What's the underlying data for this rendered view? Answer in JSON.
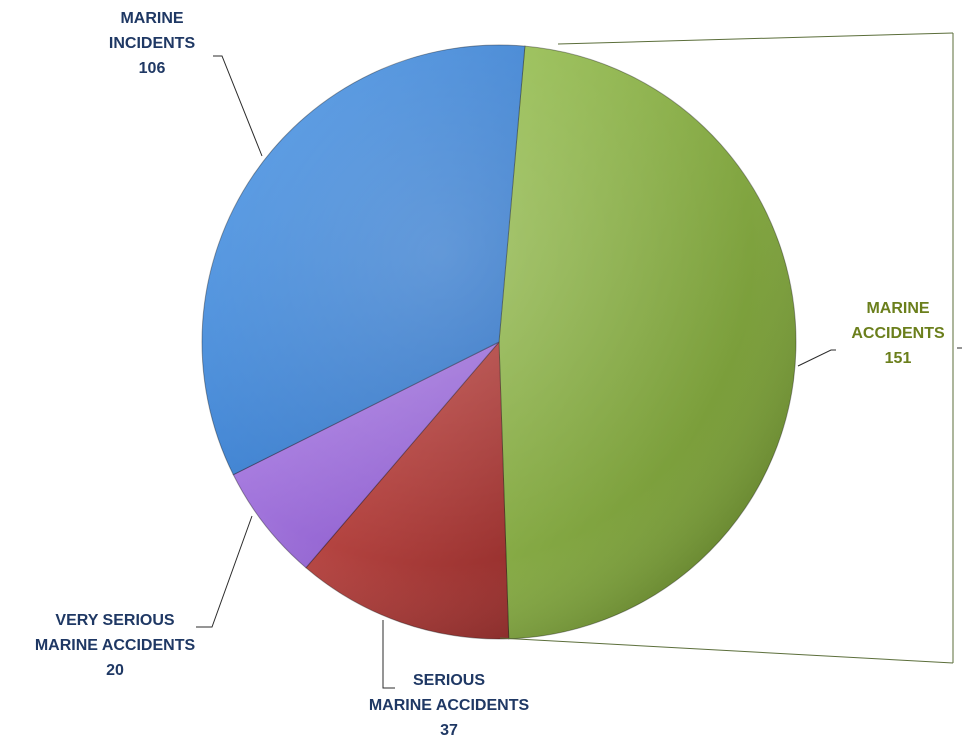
{
  "chart_data": {
    "type": "pie",
    "title": "",
    "categories": [
      "MARINE ACCIDENTS",
      "SERIOUS MARINE ACCIDENTS",
      "VERY SERIOUS MARINE ACCIDENTS",
      "MARINE INCIDENTS"
    ],
    "values": [
      151,
      37,
      20,
      106
    ],
    "colors": [
      "#7ea13a",
      "#b03c38",
      "#9b68d8",
      "#3f84d6"
    ],
    "label_colors": [
      "#6b7f1c",
      "#1f3864",
      "#1f3864",
      "#1f3864"
    ],
    "legend": "none",
    "style": "3d-shaded",
    "labels": [
      {
        "lines": [
          "MARINE",
          "ACCIDENTS"
        ],
        "value": "151"
      },
      {
        "lines": [
          "SERIOUS",
          "MARINE ACCIDENTS"
        ],
        "value": "37"
      },
      {
        "lines": [
          "VERY SERIOUS",
          "MARINE ACCIDENTS"
        ],
        "value": "20"
      },
      {
        "lines": [
          "MARINE",
          "INCIDENTS"
        ],
        "value": "106"
      }
    ]
  }
}
